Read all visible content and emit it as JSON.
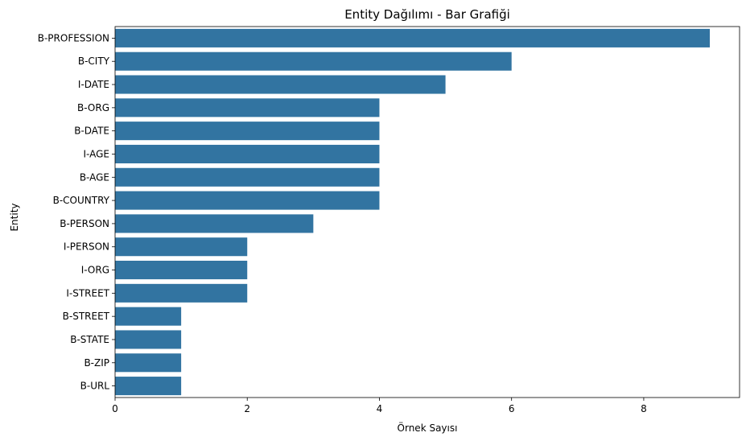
{
  "chart_data": {
    "type": "bar",
    "orientation": "horizontal",
    "title": "Entity Dağılımı - Bar Grafiği",
    "xlabel": "Örnek Sayısı",
    "ylabel": "Entity",
    "xlim": [
      0,
      9.45
    ],
    "xticks": [
      0,
      2,
      4,
      6,
      8
    ],
    "grid": false,
    "legend": "none",
    "bar_color": "#3274a1",
    "categories": [
      "B-PROFESSION",
      "B-CITY",
      "I-DATE",
      "B-ORG",
      "B-DATE",
      "I-AGE",
      "B-AGE",
      "B-COUNTRY",
      "B-PERSON",
      "I-PERSON",
      "I-ORG",
      "I-STREET",
      "B-STREET",
      "B-STATE",
      "B-ZIP",
      "B-URL"
    ],
    "values": [
      9,
      6,
      5,
      4,
      4,
      4,
      4,
      4,
      3,
      2,
      2,
      2,
      1,
      1,
      1,
      1
    ]
  }
}
